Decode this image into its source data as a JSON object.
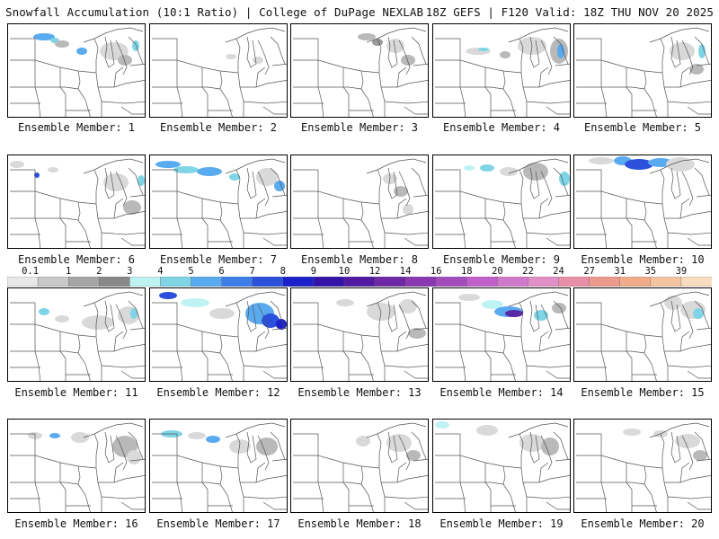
{
  "header": {
    "title_left": "Snowfall Accumulation (10:1 Ratio) | College of DuPage NEXLAB",
    "title_right": "18Z GEFS | F120 Valid: 18Z THU NOV 20 2025"
  },
  "colorbar": {
    "labels": [
      "0.1",
      "1",
      "2",
      "3",
      "4",
      "5",
      "6",
      "7",
      "8",
      "9",
      "10",
      "12",
      "14",
      "16",
      "18",
      "20",
      "22",
      "24",
      "27",
      "31",
      "35",
      "39"
    ],
    "colors": [
      "#e8e8e8",
      "#c8c8c8",
      "#a6a6a6",
      "#888888",
      "#bff3f3",
      "#7fd4e6",
      "#5aaaf0",
      "#3e7ee8",
      "#2a50dc",
      "#1c20c8",
      "#3414a8",
      "#521aa2",
      "#6e28a6",
      "#8a38b0",
      "#a44cbc",
      "#c060c8",
      "#d078cc",
      "#e090c6",
      "#e890a8",
      "#ec9a8e",
      "#f0ac8a",
      "#f4c4a0",
      "#f8dcc0"
    ]
  },
  "panels": [
    {
      "label": "Ensemble Member: 1"
    },
    {
      "label": "Ensemble Member: 2"
    },
    {
      "label": "Ensemble Member: 3"
    },
    {
      "label": "Ensemble Member: 4"
    },
    {
      "label": "Ensemble Member: 5"
    },
    {
      "label": "Ensemble Member: 6"
    },
    {
      "label": "Ensemble Member: 7"
    },
    {
      "label": "Ensemble Member: 8"
    },
    {
      "label": "Ensemble Member: 9"
    },
    {
      "label": "Ensemble Member: 10"
    },
    {
      "label": "Ensemble Member: 11"
    },
    {
      "label": "Ensemble Member: 12"
    },
    {
      "label": "Ensemble Member: 13"
    },
    {
      "label": "Ensemble Member: 14"
    },
    {
      "label": "Ensemble Member: 15"
    },
    {
      "label": "Ensemble Member: 16"
    },
    {
      "label": "Ensemble Member: 17"
    },
    {
      "label": "Ensemble Member: 18"
    },
    {
      "label": "Ensemble Member: 19"
    },
    {
      "label": "Ensemble Member: 20"
    }
  ]
}
